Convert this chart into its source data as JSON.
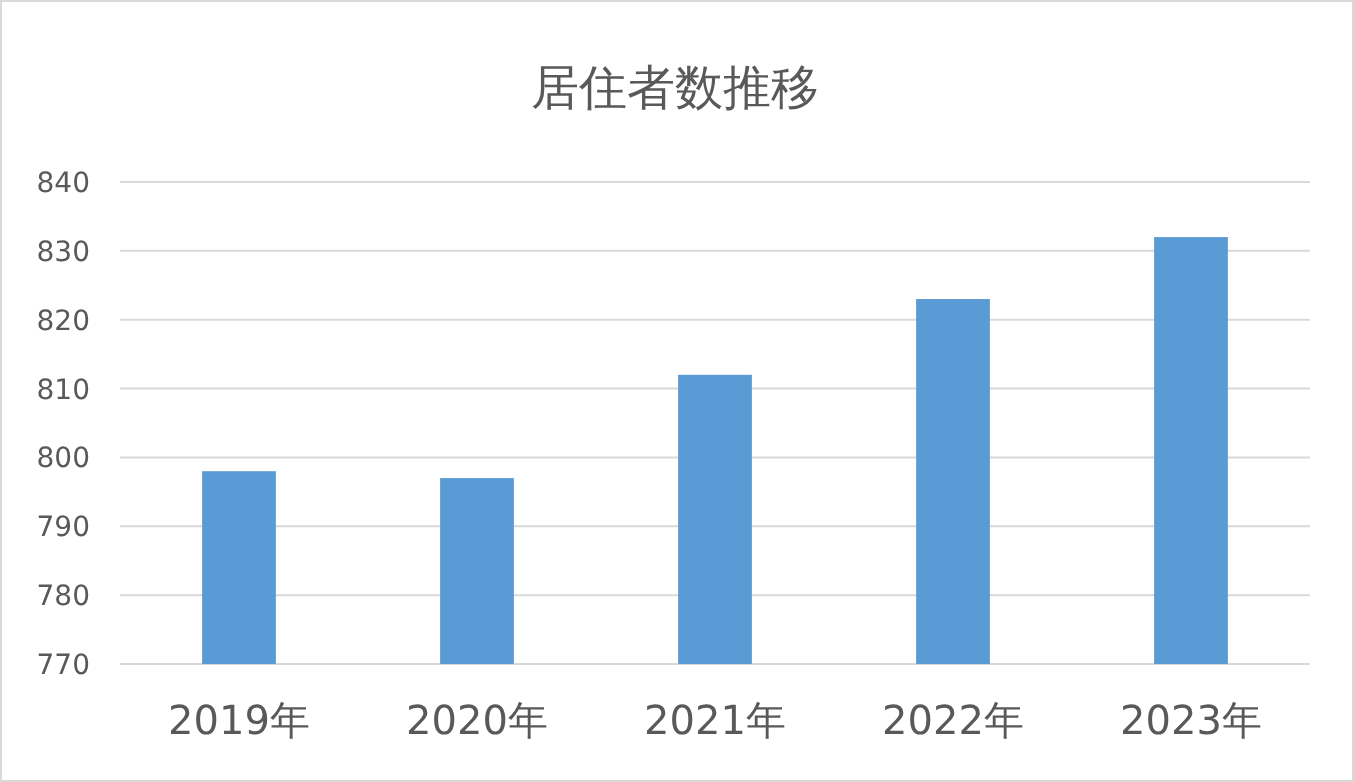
{
  "chart_data": {
    "type": "bar",
    "title": "居住者数推移",
    "categories": [
      "2019年",
      "2020年",
      "2021年",
      "2022年",
      "2023年"
    ],
    "values": [
      798,
      797,
      812,
      823,
      832
    ],
    "color": "#5b9bd5",
    "ylim": [
      770,
      840
    ],
    "yticks": [
      770,
      780,
      790,
      800,
      810,
      820,
      830,
      840
    ],
    "grid": "y"
  }
}
